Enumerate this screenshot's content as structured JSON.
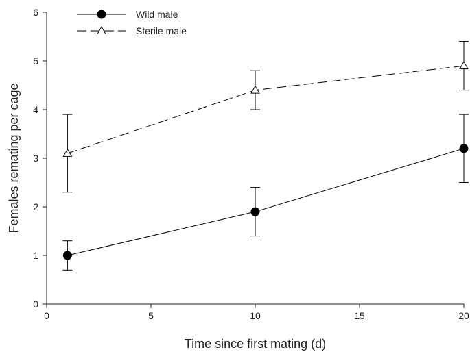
{
  "chart_data": {
    "type": "line",
    "xlabel": "Time since first mating (d)",
    "ylabel": "Females remating per cage",
    "xlim": [
      0,
      20
    ],
    "ylim": [
      0,
      6
    ],
    "xticks": [
      0,
      5,
      10,
      15,
      20
    ],
    "yticks": [
      0,
      1,
      2,
      3,
      4,
      5,
      6
    ],
    "grid": false,
    "legend_position": "top-left",
    "series": [
      {
        "name": "Wild male",
        "marker": "filled-circle",
        "line_style": "solid",
        "color": "#000000",
        "points": [
          {
            "x": 1,
            "y": 1.0,
            "err_low": 0.7,
            "err_high": 1.3
          },
          {
            "x": 10,
            "y": 1.9,
            "err_low": 1.4,
            "err_high": 2.4
          },
          {
            "x": 20,
            "y": 3.2,
            "err_low": 2.5,
            "err_high": 3.9
          }
        ]
      },
      {
        "name": "Sterile male",
        "marker": "open-triangle",
        "line_style": "dashed",
        "color": "#000000",
        "points": [
          {
            "x": 1,
            "y": 3.1,
            "err_low": 2.3,
            "err_high": 3.9
          },
          {
            "x": 10,
            "y": 4.4,
            "err_low": 4.0,
            "err_high": 4.8
          },
          {
            "x": 20,
            "y": 4.9,
            "err_low": 4.4,
            "err_high": 5.4
          }
        ]
      }
    ]
  }
}
